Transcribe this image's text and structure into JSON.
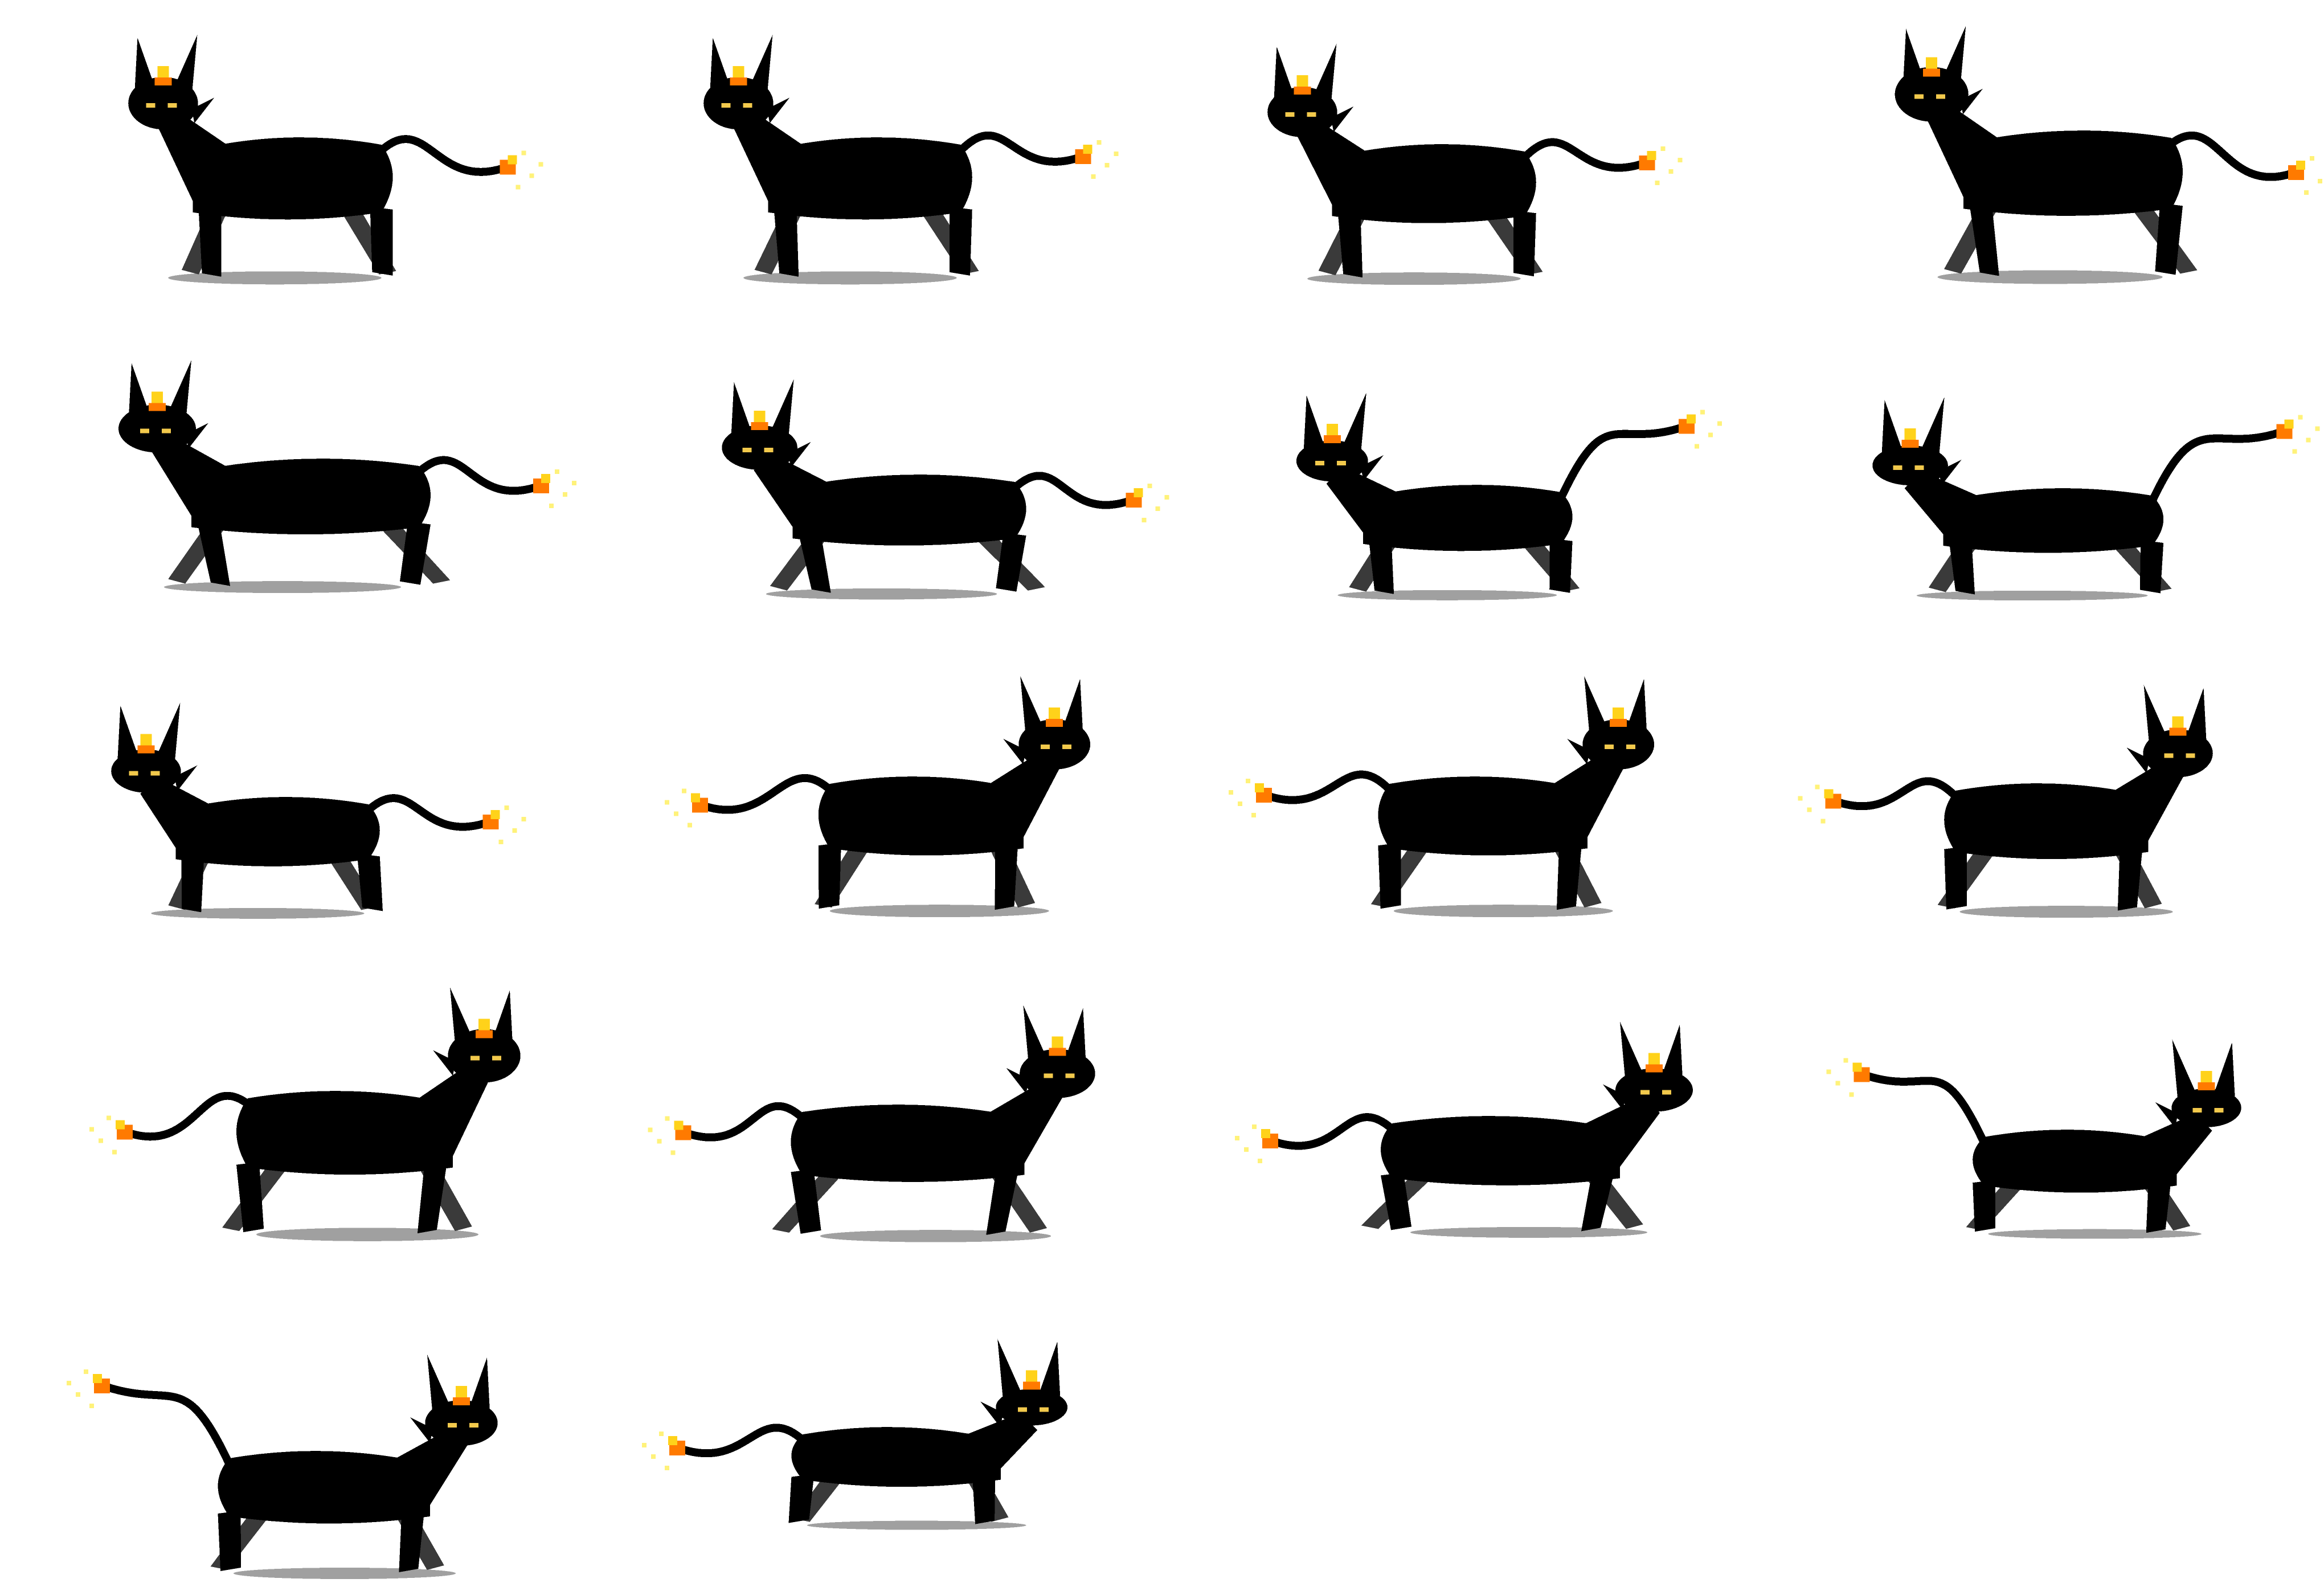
{
  "sprite_sheet": {
    "grid": {
      "columns": 4,
      "rows": 5
    },
    "palette": {
      "body": "#000000",
      "limb_shade": "#3a3a3a",
      "shadow": "#a0a0a0",
      "eye": "#f2c94c",
      "flame_core": "#ff7a00",
      "flame_tip": "#ffd21a",
      "spark": "#fff27a",
      "background": "#ffffff"
    },
    "frames": [
      {
        "id": 1,
        "facing": "left",
        "pose": "trot"
      },
      {
        "id": 2,
        "facing": "left",
        "pose": "walk"
      },
      {
        "id": 3,
        "facing": "left",
        "pose": "walk"
      },
      {
        "id": 4,
        "facing": "left",
        "pose": "leap"
      },
      {
        "id": 5,
        "facing": "left",
        "pose": "gallop-stretch"
      },
      {
        "id": 6,
        "facing": "left",
        "pose": "gallop-stretch"
      },
      {
        "id": 7,
        "facing": "left",
        "pose": "tail-up-walk"
      },
      {
        "id": 8,
        "facing": "left",
        "pose": "tail-up-walk"
      },
      {
        "id": 9,
        "facing": "left",
        "pose": "gallop-gather"
      },
      {
        "id": 10,
        "facing": "right",
        "pose": "trot"
      },
      {
        "id": 11,
        "facing": "right",
        "pose": "walk"
      },
      {
        "id": 12,
        "facing": "right",
        "pose": "walk"
      },
      {
        "id": 13,
        "facing": "right",
        "pose": "leap"
      },
      {
        "id": 14,
        "facing": "right",
        "pose": "gallop-stretch"
      },
      {
        "id": 15,
        "facing": "right",
        "pose": "gallop-stretch"
      },
      {
        "id": 16,
        "facing": "right",
        "pose": "tail-up-walk"
      },
      {
        "id": 17,
        "facing": "right",
        "pose": "tail-up-walk"
      },
      {
        "id": 18,
        "facing": "right",
        "pose": "gallop-gather"
      }
    ]
  }
}
